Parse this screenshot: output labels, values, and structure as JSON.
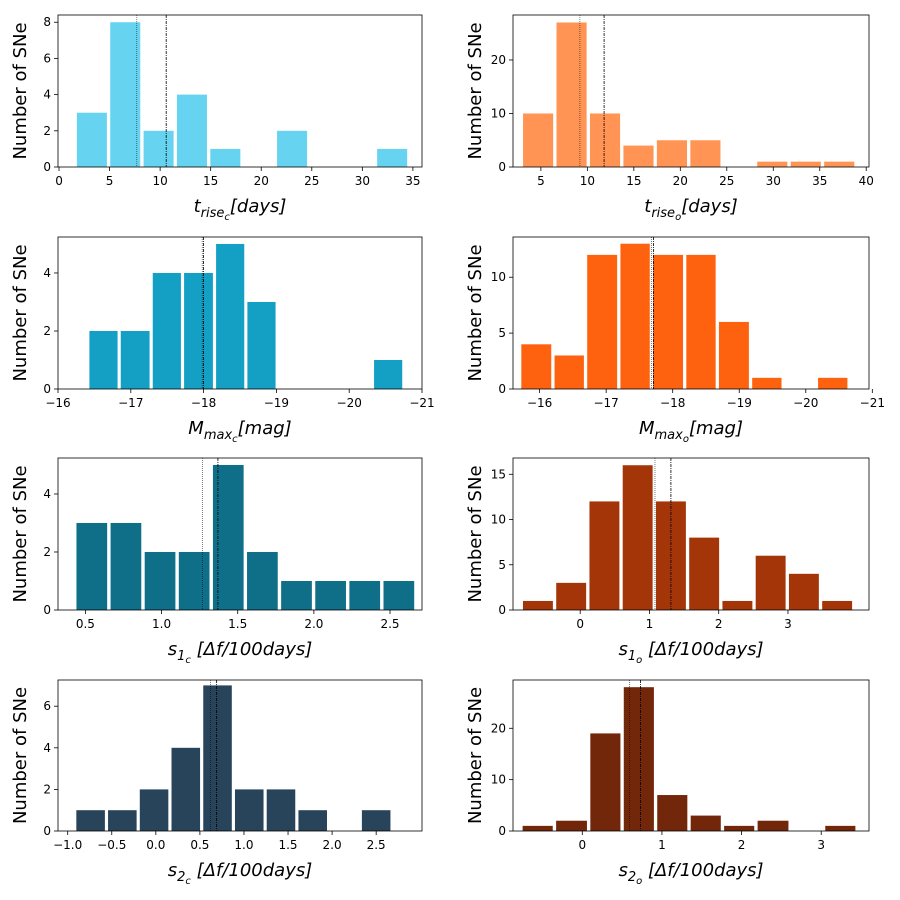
{
  "chart_data": [
    {
      "type": "histogram",
      "color": "#66d4f0",
      "ylabel": "Number of SNe",
      "xlabel_parts": [
        {
          "text": "t",
          "level": 0
        },
        {
          "text": "rise",
          "level": 1
        },
        {
          "text": "c",
          "level": 2
        },
        {
          "text": "[days]",
          "level": 0
        }
      ],
      "bins": [
        1.6,
        4.9,
        8.2,
        11.5,
        14.8,
        18.1,
        21.4,
        24.7,
        28.0,
        31.3,
        34.6
      ],
      "counts": [
        3,
        8,
        2,
        4,
        1,
        0,
        2,
        0,
        0,
        1
      ],
      "vlines": [
        7.7,
        10.6
      ],
      "xlim": [
        -0.1,
        35.9
      ],
      "xticks": [
        0,
        5,
        10,
        15,
        20,
        25,
        30,
        35
      ],
      "ylim": [
        0,
        8.4
      ],
      "yticks": [
        0,
        2,
        4,
        6,
        8
      ]
    },
    {
      "type": "histogram",
      "color": "#ff9455",
      "ylabel": "Number of SNe",
      "xlabel_parts": [
        {
          "text": "t",
          "level": 0
        },
        {
          "text": "rise",
          "level": 1
        },
        {
          "text": "o",
          "level": 2
        },
        {
          "text": "[days]",
          "level": 0
        }
      ],
      "bins": [
        2.9,
        6.5,
        10.1,
        13.7,
        17.3,
        20.9,
        24.5,
        28.1,
        31.7,
        35.3,
        38.9
      ],
      "counts": [
        10,
        27,
        10,
        4,
        5,
        5,
        0,
        1,
        1,
        1
      ],
      "vlines": [
        9.2,
        11.8
      ],
      "xlim": [
        2.0,
        40.3
      ],
      "xticks": [
        5,
        10,
        15,
        20,
        25,
        30,
        35,
        40
      ],
      "ylim": [
        0,
        28.4
      ],
      "yticks": [
        0,
        10,
        20
      ]
    },
    {
      "type": "histogram",
      "color": "#14a0c4",
      "ylabel": "Number of SNe",
      "xlabel_parts": [
        {
          "text": "M",
          "level": 0
        },
        {
          "text": "max",
          "level": 1
        },
        {
          "text": "c",
          "level": 2
        },
        {
          "text": "[mag]",
          "level": 0
        }
      ],
      "bins": [
        -16.41,
        -16.84,
        -17.28,
        -17.71,
        -18.15,
        -18.58,
        -19.01,
        -19.45,
        -19.88,
        -20.32,
        -20.75
      ],
      "counts": [
        2,
        2,
        4,
        4,
        5,
        3,
        0,
        0,
        0,
        1
      ],
      "vlines": [
        -17.98,
        -18.0
      ],
      "xlim": [
        -16,
        -21
      ],
      "xticks": [
        {
          "value": -16,
          "label": "−16"
        },
        {
          "value": -17,
          "label": "−17"
        },
        {
          "value": -18,
          "label": "−18"
        },
        {
          "value": -19,
          "label": "−19"
        },
        {
          "value": -20,
          "label": "−20"
        },
        {
          "value": -21,
          "label": "−21"
        }
      ],
      "ylim": [
        0,
        5.24
      ],
      "yticks": [
        0,
        2,
        4
      ]
    },
    {
      "type": "histogram",
      "color": "#ff620f",
      "ylabel": "Number of SNe",
      "xlabel_parts": [
        {
          "text": "M",
          "level": 0
        },
        {
          "text": "max",
          "level": 1
        },
        {
          "text": "o",
          "level": 2
        },
        {
          "text": "[mag]",
          "level": 0
        }
      ],
      "bins": [
        -15.7,
        -16.2,
        -16.69,
        -17.19,
        -17.68,
        -18.18,
        -18.67,
        -19.17,
        -19.66,
        -20.16,
        -20.65
      ],
      "counts": [
        4,
        3,
        12,
        13,
        12,
        12,
        6,
        1,
        0,
        1
      ],
      "vlines": [
        -17.68,
        -17.71
      ],
      "xlim": [
        -15.6,
        -20.95
      ],
      "xticks": [
        {
          "value": -16,
          "label": "−16"
        },
        {
          "value": -17,
          "label": "−17"
        },
        {
          "value": -18,
          "label": "−18"
        },
        {
          "value": -19,
          "label": "−19"
        },
        {
          "value": -20,
          "label": "−20"
        },
        {
          "value": -21,
          "label": "−21"
        }
      ],
      "ylim": [
        0,
        13.6
      ],
      "yticks": [
        0,
        5,
        10
      ]
    },
    {
      "type": "histogram",
      "color": "#0f6e88",
      "ylabel": "Number of SNe",
      "xlabel_parts": [
        {
          "text": "s",
          "level": 0
        },
        {
          "text": "1",
          "level": 1
        },
        {
          "text": "c",
          "level": 2
        },
        {
          "text": " [Δf/100days]",
          "level": 0
        }
      ],
      "bins": [
        0.43,
        0.654,
        0.878,
        1.102,
        1.326,
        1.55,
        1.774,
        1.998,
        2.222,
        2.446,
        2.67
      ],
      "counts": [
        3,
        3,
        2,
        2,
        5,
        2,
        1,
        1,
        1,
        1
      ],
      "vlines": [
        1.27,
        1.37
      ],
      "xlim": [
        0.32,
        2.71
      ],
      "xticks": [
        0.5,
        {
          "value": 1,
          "label": "1.0"
        },
        1.5,
        {
          "value": 2,
          "label": "2.0"
        },
        2.5
      ],
      "ylim": [
        0,
        5.24
      ],
      "yticks": [
        0,
        2,
        4
      ]
    },
    {
      "type": "histogram",
      "color": "#a33508",
      "ylabel": "Number of SNe",
      "xlabel_parts": [
        {
          "text": "s",
          "level": 0
        },
        {
          "text": "1",
          "level": 1
        },
        {
          "text": "o",
          "level": 2
        },
        {
          "text": " [Δf/100days]",
          "level": 0
        }
      ],
      "bins": [
        -0.85,
        -0.37,
        0.11,
        0.59,
        1.07,
        1.55,
        2.03,
        2.51,
        2.99,
        3.47,
        3.95
      ],
      "counts": [
        1,
        3,
        12,
        16,
        12,
        8,
        1,
        6,
        4,
        1
      ],
      "vlines": [
        1.08,
        1.31
      ],
      "xlim": [
        -0.97,
        4.17
      ],
      "xticks": [
        0,
        1,
        2,
        3
      ],
      "ylim": [
        0,
        16.8
      ],
      "yticks": [
        0,
        5,
        10,
        15
      ]
    },
    {
      "type": "histogram",
      "color": "#28445a",
      "ylabel": "Number of SNe",
      "xlabel_parts": [
        {
          "text": "s",
          "level": 0
        },
        {
          "text": "2",
          "level": 1
        },
        {
          "text": "c",
          "level": 2
        },
        {
          "text": " [Δf/100days]",
          "level": 0
        }
      ],
      "bins": [
        -0.92,
        -0.56,
        -0.2,
        0.16,
        0.52,
        0.88,
        1.24,
        1.6,
        1.96,
        2.32,
        2.68
      ],
      "counts": [
        1,
        1,
        2,
        4,
        7,
        2,
        2,
        1,
        0,
        1
      ],
      "vlines": [
        0.62,
        0.69
      ],
      "xlim": [
        -1.11,
        3.02
      ],
      "xticks": [
        {
          "value": -1,
          "label": "−1.0"
        },
        {
          "value": -0.5,
          "label": "−0.5"
        },
        {
          "value": 0,
          "label": "0.0"
        },
        0.5,
        {
          "value": 1,
          "label": "1.0"
        },
        1.5,
        {
          "value": 2,
          "label": "2.0"
        },
        2.5
      ],
      "ylim": [
        0,
        7.26
      ],
      "yticks": [
        0,
        2,
        4,
        6
      ]
    },
    {
      "type": "histogram",
      "color": "#72260a",
      "ylabel": "Number of SNe",
      "xlabel_parts": [
        {
          "text": "s",
          "level": 0
        },
        {
          "text": "2",
          "level": 1
        },
        {
          "text": "o",
          "level": 2
        },
        {
          "text": " [Δf/100days]",
          "level": 0
        }
      ],
      "bins": [
        -0.77,
        -0.35,
        0.08,
        0.5,
        0.92,
        1.34,
        1.76,
        2.18,
        2.61,
        3.03,
        3.45
      ],
      "counts": [
        1,
        2,
        19,
        28,
        7,
        3,
        1,
        2,
        0,
        1
      ],
      "vlines": [
        0.59,
        0.73
      ],
      "xlim": [
        -0.87,
        3.6
      ],
      "xticks": [
        0,
        1,
        2,
        3
      ],
      "ylim": [
        0,
        29.4
      ],
      "yticks": [
        0,
        10,
        20
      ]
    }
  ]
}
